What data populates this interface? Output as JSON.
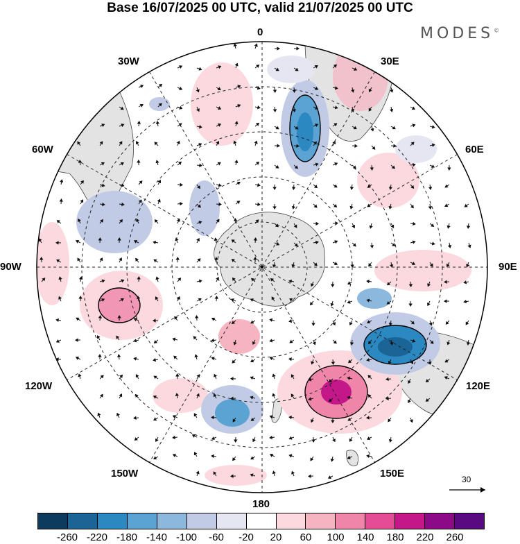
{
  "title": "Base 16/07/2025 00 UTC, valid 21/07/2025 00 UTC",
  "brand": "MODES",
  "brand_mark": "©",
  "longitude_labels": {
    "top": "0",
    "bottom": "180",
    "left": "90W",
    "right": "90E",
    "upper_left_1": "30W",
    "upper_left_2": "60W",
    "upper_right_1": "30E",
    "upper_right_2": "60E",
    "lower_left_1": "120W",
    "lower_left_2": "150W",
    "lower_right_1": "120E",
    "lower_right_2": "150E"
  },
  "reference_vector": {
    "value": "30",
    "icon": "arrow-right-icon"
  },
  "colorbar": {
    "colors": [
      "#0d3b5e",
      "#1a6496",
      "#2b88c0",
      "#5aa3d2",
      "#8db8de",
      "#c2cbe6",
      "#e6e6f2",
      "#ffffff",
      "#fbd9de",
      "#f6b4c0",
      "#ef86aa",
      "#e44d96",
      "#c4178a",
      "#8c0a86",
      "#5a0a80"
    ],
    "ticks": [
      "-260",
      "-220",
      "-180",
      "-140",
      "-100",
      "-60",
      "-20",
      "20",
      "60",
      "100",
      "140",
      "180",
      "220",
      "260"
    ]
  }
}
